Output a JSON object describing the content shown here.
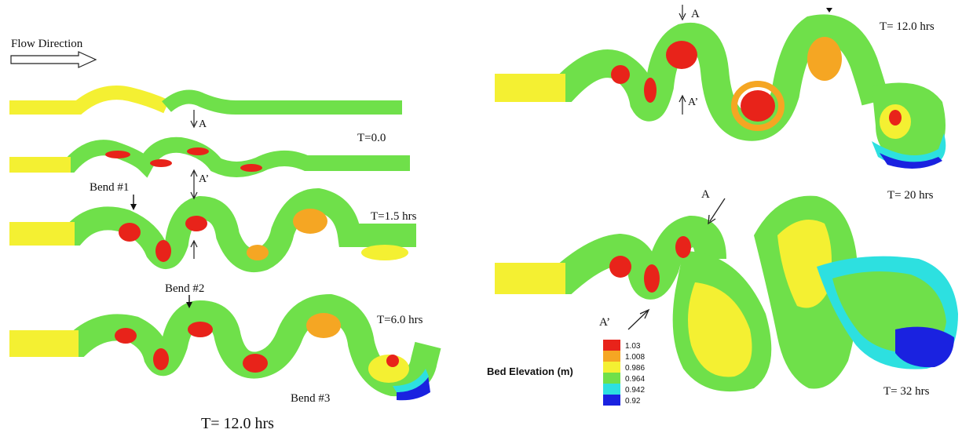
{
  "flow_label": "Flow Direction",
  "left_panel": {
    "time_labels": [
      "T=0.0",
      "T=1.5 hrs",
      "T=6.0 hrs"
    ],
    "caption": "T= 12.0 hrs",
    "bend_labels": [
      "Bend  #1",
      "Bend  #2",
      "Bend  #3"
    ],
    "section_a": "A",
    "section_a_prime": "A’"
  },
  "right_panel": {
    "time_labels": [
      "T= 12.0 hrs",
      "T= 20 hrs",
      "T= 32 hrs"
    ],
    "section_a": "A",
    "section_a_prime": "A’"
  },
  "legend": {
    "title": "Bed Elevation (m)",
    "entries": [
      {
        "value": "1.03",
        "color": "#e8231a"
      },
      {
        "value": "1.008",
        "color": "#f5a623"
      },
      {
        "value": "0.986",
        "color": "#f4f032"
      },
      {
        "value": "0.964",
        "color": "#6fe04a"
      },
      {
        "value": "0.942",
        "color": "#2de0e0"
      },
      {
        "value": "0.92",
        "color": "#1a22e0"
      }
    ]
  },
  "colors": {
    "red": "#e8231a",
    "orange": "#f5a623",
    "yellow": "#f4f032",
    "green": "#6fe04a",
    "cyan": "#2de0e0",
    "blue": "#1a22e0"
  }
}
